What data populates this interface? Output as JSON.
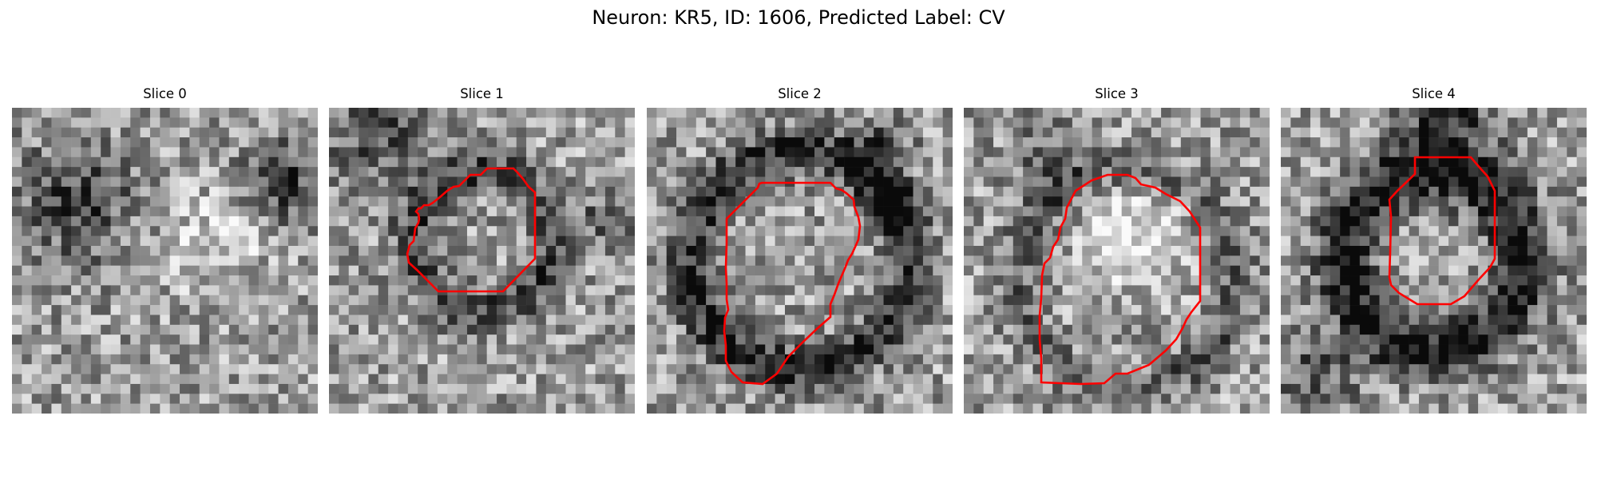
{
  "figure": {
    "suptitle": "Neuron: KR5, ID: 1606, Predicted Label: CV"
  },
  "colors": {
    "background": "#ffffff",
    "contour": "#ff0000",
    "colormap": "grayscale"
  },
  "panels": [
    {
      "title": "Slice 0",
      "has_contour": false
    },
    {
      "title": "Slice 1",
      "has_contour": true
    },
    {
      "title": "Slice 2",
      "has_contour": true
    },
    {
      "title": "Slice 3",
      "has_contour": true
    },
    {
      "title": "Slice 4",
      "has_contour": true
    }
  ]
}
